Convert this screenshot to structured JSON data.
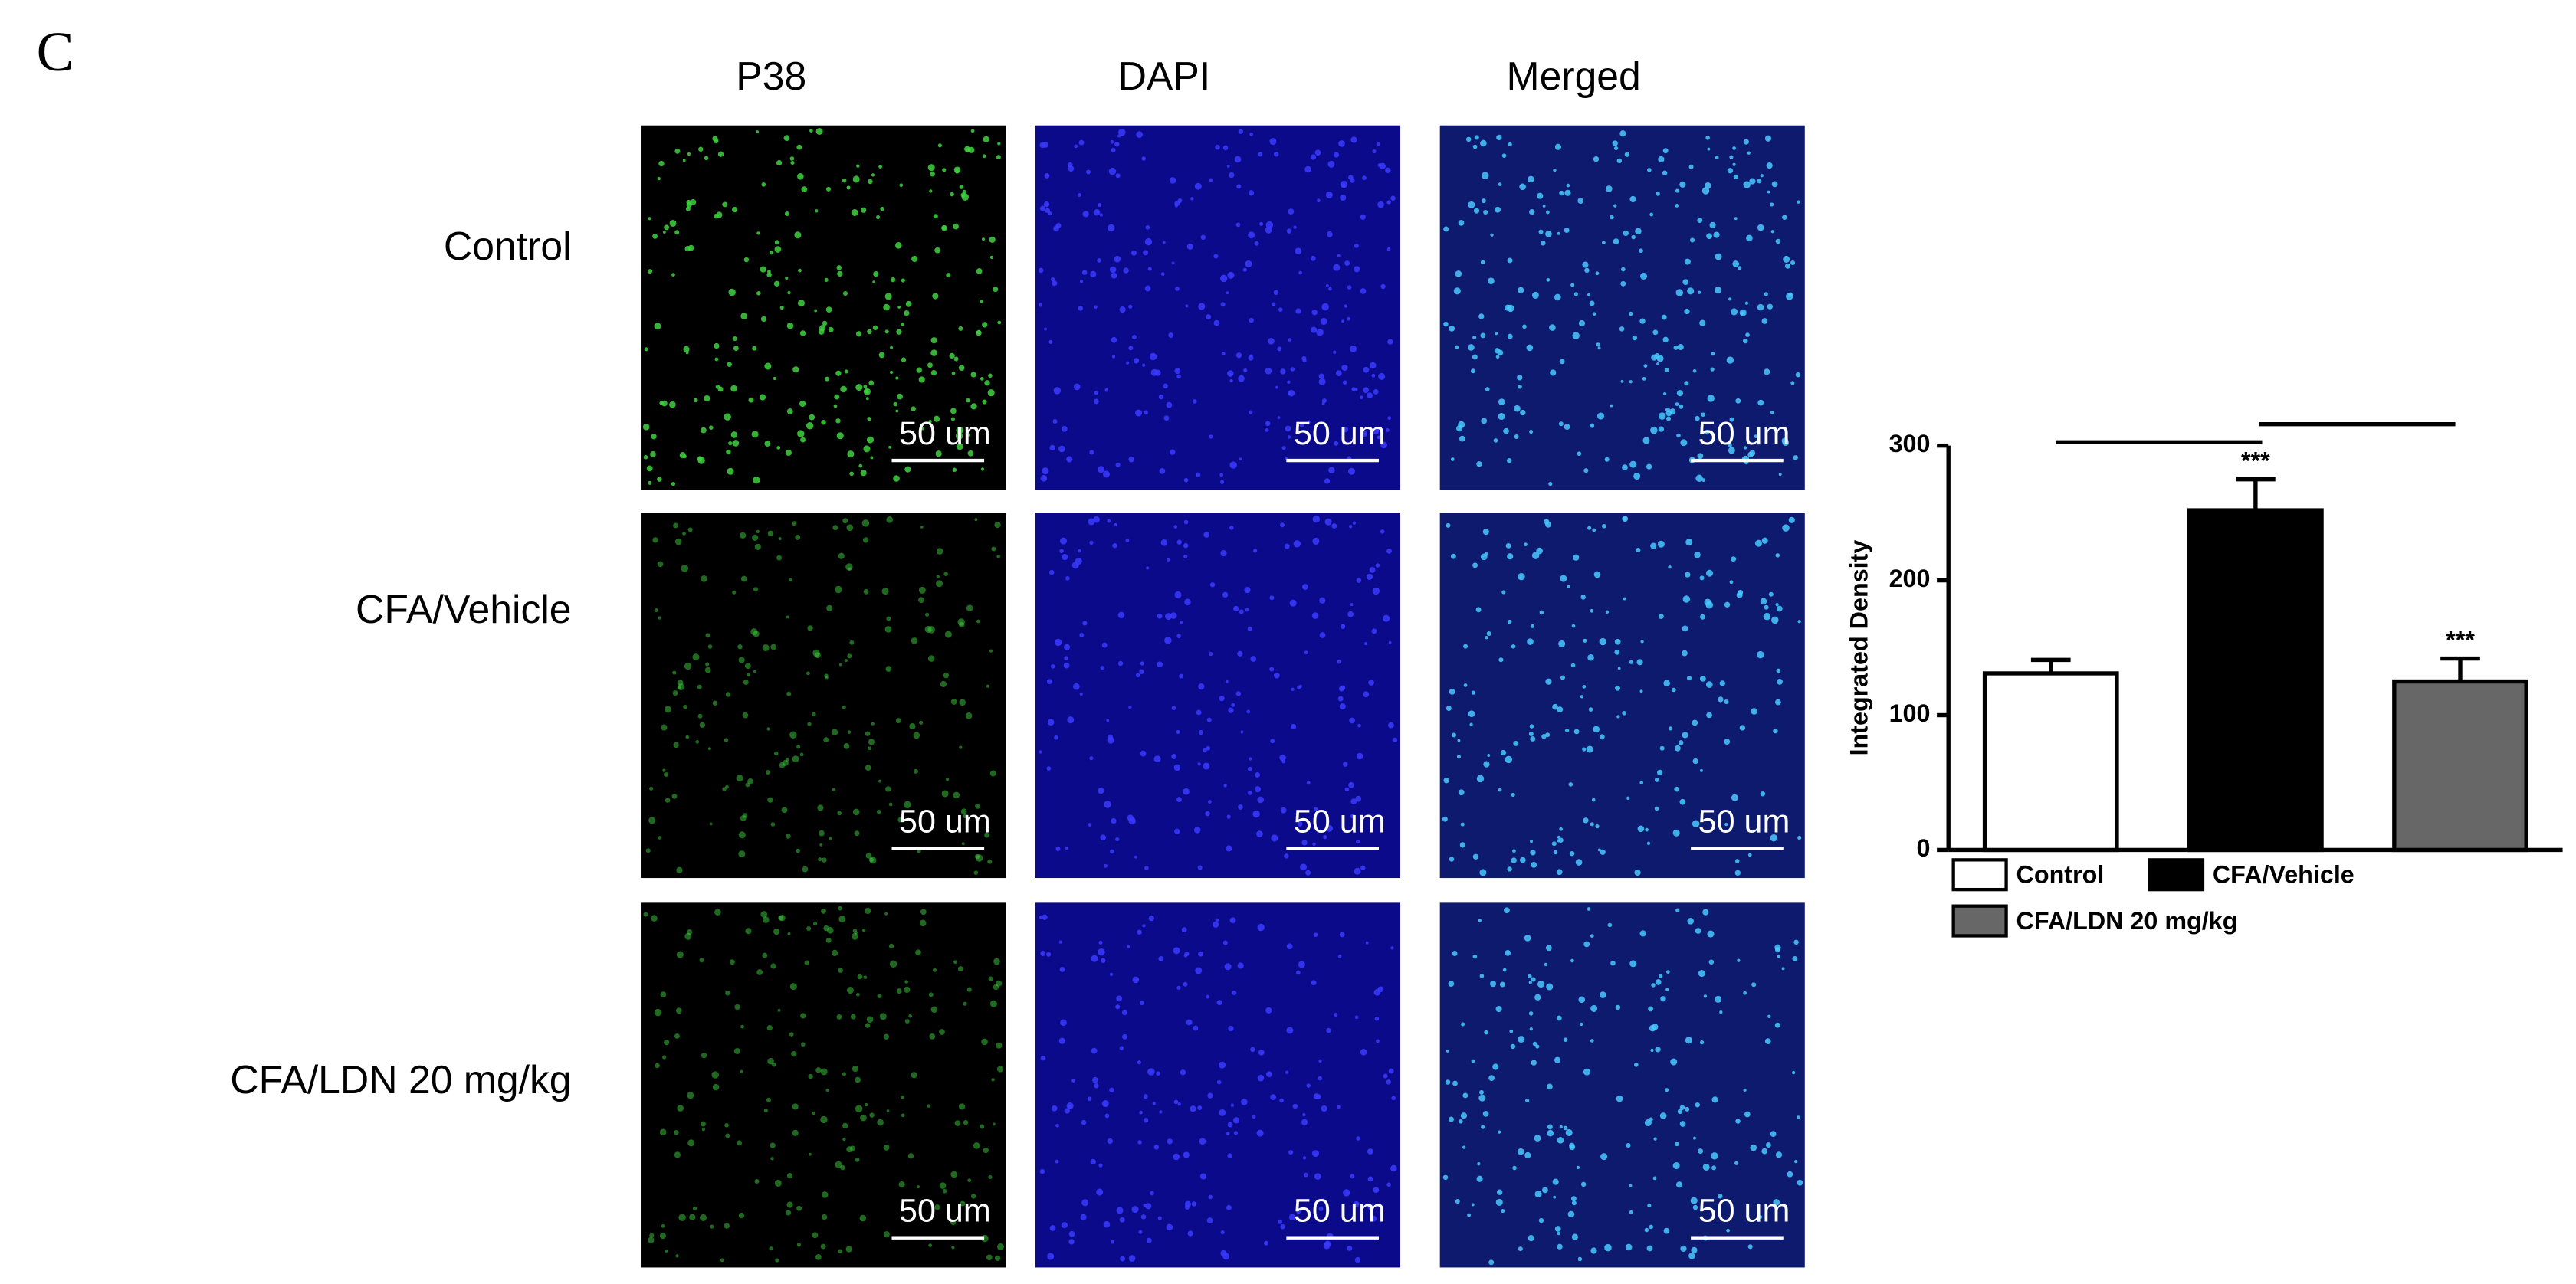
{
  "panel_label": "C",
  "images": {
    "columns": [
      "P38",
      "DAPI",
      "Merged"
    ],
    "rows": [
      "Control",
      "CFA/Vehicle",
      "CFA/LDN 20 mg/kg"
    ],
    "scale_bar": "50 um"
  },
  "chart_data": {
    "type": "bar",
    "y_label": "Integrated Density",
    "categories": [
      "Control",
      "CFA/Vehicle",
      "CFA/LDN 20 mg/kg"
    ],
    "values": [
      131,
      252,
      125
    ],
    "errors": [
      10,
      23,
      17
    ],
    "significance": [
      null,
      "***",
      "***"
    ],
    "colors": [
      "#ffffff",
      "#000000",
      "#676767"
    ],
    "ylim": [
      0,
      300
    ],
    "yticks": [
      0,
      100,
      200,
      300
    ]
  }
}
